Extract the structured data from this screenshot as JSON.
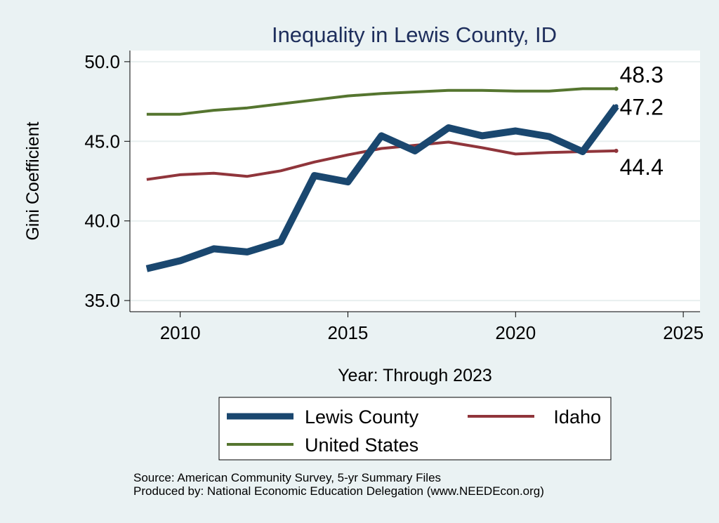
{
  "chart_data": {
    "type": "line",
    "title": "Inequality in Lewis County, ID",
    "xlabel": "Year: Through 2023",
    "ylabel": "Gini Coefficient",
    "xlim": [
      2008.5,
      2025.5
    ],
    "ylim": [
      34.3,
      50.7
    ],
    "xticks": [
      2010,
      2015,
      2020,
      2025
    ],
    "yticks": [
      35.0,
      40.0,
      45.0,
      50.0
    ],
    "ytick_labels": [
      "35.0",
      "40.0",
      "45.0",
      "50.0"
    ],
    "grid": true,
    "x": [
      2009,
      2010,
      2011,
      2012,
      2013,
      2014,
      2015,
      2016,
      2017,
      2018,
      2019,
      2020,
      2021,
      2022,
      2023
    ],
    "series": [
      {
        "name": "Lewis County",
        "color": "#1a476f",
        "values": [
          37.0,
          37.5,
          38.25,
          38.05,
          38.7,
          42.85,
          42.45,
          45.35,
          44.4,
          45.85,
          45.35,
          45.65,
          45.3,
          44.35,
          47.2
        ],
        "end_label": "47.2"
      },
      {
        "name": "Idaho",
        "color": "#90353b",
        "values": [
          42.6,
          42.9,
          43.0,
          42.8,
          43.15,
          43.7,
          44.15,
          44.55,
          44.75,
          44.95,
          44.6,
          44.2,
          44.3,
          44.35,
          44.4
        ],
        "end_label": "44.4"
      },
      {
        "name": "United States",
        "color": "#55752f",
        "values": [
          46.7,
          46.7,
          46.95,
          47.1,
          47.35,
          47.6,
          47.85,
          48.0,
          48.1,
          48.2,
          48.2,
          48.15,
          48.15,
          48.3,
          48.3
        ],
        "end_label": "48.3"
      }
    ],
    "legend": [
      "Lewis County",
      "Idaho",
      "United States"
    ],
    "legend_position": "bottom"
  },
  "footer": {
    "source": "Source: American Community Survey, 5-yr Summary Files",
    "produced": "Produced by: National Economic Education Delegation (www.NEEDEcon.org)"
  }
}
